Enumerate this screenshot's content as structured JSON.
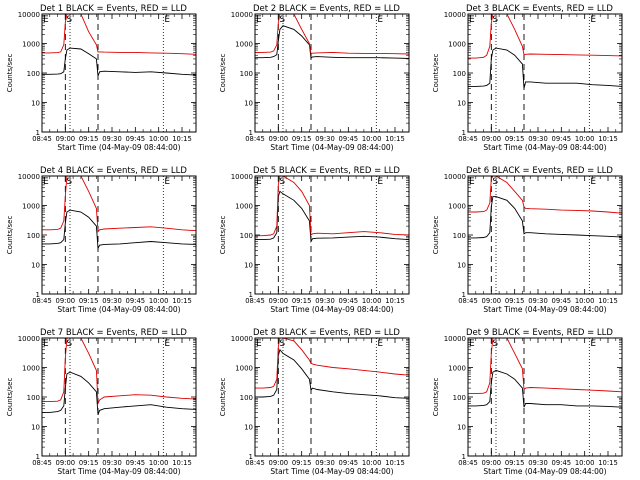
{
  "colors": {
    "events": "#000000",
    "lld": "#dd0000",
    "axis": "#000000",
    "background": "#ffffff"
  },
  "panel_common": {
    "ylabel": "Counts/sec",
    "xlabel_prefix": "Start Time (",
    "xlabel_suffix": ")",
    "yticks": [
      "1",
      "10",
      "100",
      "1000",
      "10000"
    ],
    "xticks": [
      "08:45",
      "09:00",
      "09:15",
      "09:30",
      "09:45",
      "10:00",
      "10:15"
    ],
    "marker_s": "S",
    "marker_e": "E",
    "title_suffix": " BLACK = Events, RED = LLD"
  },
  "chart_data": [
    {
      "type": "line",
      "title": "Det 1",
      "start_time": "04-May-09 08:44:00",
      "xlabel": "Start Time (04-May-09 08:44:00)",
      "ylabel": "Counts/sec",
      "x_unit": "minutes from 08:45",
      "xlim": [
        0,
        99
      ],
      "ylim": [
        1,
        10000
      ],
      "yscale": "log",
      "markers": {
        "s_dashed": 15,
        "e_dashed": 36,
        "s_dotted": 18,
        "e_dotted": 78
      },
      "series": [
        {
          "name": "Events",
          "color": "#000000",
          "x": [
            0,
            5,
            10,
            12,
            14,
            15,
            16,
            18,
            25,
            30,
            35,
            36,
            37,
            40,
            50,
            60,
            70,
            80,
            90,
            99
          ],
          "y": [
            90,
            90,
            92,
            95,
            110,
            300,
            600,
            700,
            650,
            450,
            300,
            80,
            110,
            115,
            110,
            105,
            110,
            100,
            90,
            85
          ]
        },
        {
          "name": "LLD",
          "color": "#dd0000",
          "x": [
            0,
            5,
            10,
            12,
            14,
            15,
            16,
            18,
            25,
            30,
            35,
            36,
            37,
            40,
            50,
            60,
            70,
            80,
            90,
            99
          ],
          "y": [
            480,
            480,
            490,
            520,
            900,
            5000,
            10000,
            10000,
            10000,
            2500,
            900,
            520,
            520,
            510,
            500,
            500,
            480,
            470,
            450,
            430
          ]
        }
      ]
    },
    {
      "type": "line",
      "title": "Det 2",
      "start_time": "04-May-09 08:44:00",
      "xlabel": "Start Time (04-May-09 08:44:00)",
      "ylabel": "Counts/sec",
      "x_unit": "minutes from 08:45",
      "xlim": [
        0,
        99
      ],
      "ylim": [
        1,
        10000
      ],
      "yscale": "log",
      "markers": {
        "s_dashed": 15,
        "e_dashed": 36,
        "s_dotted": 18,
        "e_dotted": 78
      },
      "series": [
        {
          "name": "Events",
          "color": "#000000",
          "x": [
            0,
            5,
            10,
            12,
            14,
            15,
            16,
            18,
            25,
            30,
            35,
            36,
            37,
            40,
            50,
            60,
            70,
            80,
            90,
            99
          ],
          "y": [
            330,
            330,
            340,
            360,
            420,
            1200,
            3000,
            4000,
            3000,
            1800,
            900,
            320,
            350,
            360,
            340,
            330,
            330,
            330,
            320,
            310
          ]
        },
        {
          "name": "LLD",
          "color": "#dd0000",
          "x": [
            0,
            5,
            10,
            12,
            14,
            15,
            16,
            18,
            25,
            30,
            35,
            36,
            37,
            40,
            50,
            60,
            70,
            80,
            90,
            99
          ],
          "y": [
            500,
            500,
            510,
            560,
            900,
            5000,
            10000,
            10000,
            10000,
            3000,
            1000,
            450,
            470,
            480,
            500,
            470,
            460,
            460,
            450,
            440
          ]
        }
      ]
    },
    {
      "type": "line",
      "title": "Det 3",
      "start_time": "04-May-09 08:44:00",
      "xlabel": "Start Time (04-May-09 08:44:00)",
      "ylabel": "Counts/sec",
      "x_unit": "minutes from 08:45",
      "xlim": [
        0,
        99
      ],
      "ylim": [
        1,
        10000
      ],
      "yscale": "log",
      "markers": {
        "s_dashed": 15,
        "e_dashed": 36,
        "s_dotted": 18,
        "e_dotted": 78
      },
      "series": [
        {
          "name": "Events",
          "color": "#000000",
          "x": [
            0,
            5,
            10,
            12,
            14,
            15,
            16,
            18,
            25,
            30,
            35,
            36,
            37,
            40,
            50,
            60,
            70,
            80,
            90,
            99
          ],
          "y": [
            35,
            35,
            36,
            38,
            45,
            300,
            600,
            700,
            600,
            400,
            200,
            30,
            50,
            50,
            45,
            45,
            45,
            40,
            38,
            35
          ]
        },
        {
          "name": "LLD",
          "color": "#dd0000",
          "x": [
            0,
            5,
            10,
            12,
            14,
            15,
            16,
            18,
            25,
            30,
            35,
            36,
            37,
            40,
            50,
            60,
            70,
            80,
            90,
            99
          ],
          "y": [
            320,
            320,
            340,
            400,
            800,
            5000,
            10000,
            10000,
            10000,
            3000,
            800,
            420,
            430,
            440,
            430,
            420,
            410,
            400,
            390,
            380
          ]
        }
      ]
    },
    {
      "type": "line",
      "title": "Det 4",
      "start_time": "04-May-09 08:44:00",
      "xlabel": "Start Time (04-May-09 08:44:00)",
      "ylabel": "Counts/sec",
      "x_unit": "minutes from 08:45",
      "xlim": [
        0,
        99
      ],
      "ylim": [
        1,
        10000
      ],
      "yscale": "log",
      "markers": {
        "s_dashed": 15,
        "e_dashed": 36,
        "s_dotted": 18,
        "e_dotted": 78
      },
      "series": [
        {
          "name": "Events",
          "color": "#000000",
          "x": [
            0,
            5,
            10,
            12,
            14,
            15,
            16,
            18,
            25,
            30,
            35,
            36,
            37,
            40,
            50,
            60,
            70,
            80,
            90,
            99
          ],
          "y": [
            50,
            50,
            52,
            55,
            70,
            250,
            600,
            700,
            600,
            400,
            200,
            35,
            45,
            48,
            50,
            55,
            60,
            55,
            50,
            48
          ]
        },
        {
          "name": "LLD",
          "color": "#dd0000",
          "x": [
            0,
            5,
            10,
            12,
            14,
            15,
            16,
            18,
            25,
            30,
            35,
            36,
            37,
            40,
            50,
            60,
            70,
            80,
            90,
            99
          ],
          "y": [
            150,
            150,
            155,
            170,
            300,
            2000,
            10000,
            10000,
            10000,
            3000,
            800,
            130,
            150,
            160,
            170,
            180,
            190,
            170,
            150,
            140
          ]
        }
      ]
    },
    {
      "type": "line",
      "title": "Det 5",
      "start_time": "04-May-09 08:44:00",
      "xlabel": "Start Time (04-May-09 08:44:00)",
      "ylabel": "Counts/sec",
      "x_unit": "minutes from 08:45",
      "xlim": [
        0,
        99
      ],
      "ylim": [
        1,
        10000
      ],
      "yscale": "log",
      "markers": {
        "s_dashed": 15,
        "e_dashed": 36,
        "s_dotted": 18,
        "e_dotted": 78
      },
      "series": [
        {
          "name": "Events",
          "color": "#000000",
          "x": [
            0,
            5,
            10,
            12,
            14,
            15,
            16,
            18,
            25,
            30,
            35,
            36,
            37,
            40,
            50,
            60,
            70,
            80,
            90,
            99
          ],
          "y": [
            70,
            70,
            72,
            80,
            120,
            2000,
            3000,
            2500,
            1500,
            800,
            300,
            60,
            75,
            78,
            80,
            85,
            90,
            85,
            75,
            70
          ]
        },
        {
          "name": "LLD",
          "color": "#dd0000",
          "x": [
            0,
            5,
            10,
            12,
            14,
            15,
            16,
            18,
            25,
            30,
            35,
            36,
            37,
            40,
            50,
            60,
            70,
            80,
            90,
            99
          ],
          "y": [
            95,
            95,
            100,
            110,
            200,
            5000,
            10000,
            10000,
            6000,
            3000,
            1000,
            100,
            110,
            115,
            110,
            120,
            130,
            120,
            105,
            100
          ]
        }
      ]
    },
    {
      "type": "line",
      "title": "Det 6",
      "start_time": "04-May-09 08:44:00",
      "xlabel": "Start Time (04-May-09 08:44:00)",
      "ylabel": "Counts/sec",
      "x_unit": "minutes from 08:45",
      "xlim": [
        0,
        99
      ],
      "ylim": [
        1,
        10000
      ],
      "yscale": "log",
      "markers": {
        "s_dashed": 15,
        "e_dashed": 36,
        "s_dotted": 18,
        "e_dotted": 78
      },
      "series": [
        {
          "name": "Events",
          "color": "#000000",
          "x": [
            0,
            5,
            10,
            12,
            14,
            15,
            16,
            18,
            25,
            30,
            35,
            36,
            37,
            40,
            50,
            60,
            70,
            80,
            90,
            99
          ],
          "y": [
            80,
            80,
            82,
            88,
            120,
            900,
            2000,
            2000,
            1500,
            800,
            300,
            110,
            120,
            120,
            110,
            105,
            100,
            95,
            90,
            85
          ]
        },
        {
          "name": "LLD",
          "color": "#dd0000",
          "x": [
            0,
            5,
            10,
            12,
            14,
            15,
            16,
            18,
            25,
            30,
            35,
            36,
            37,
            40,
            50,
            60,
            70,
            80,
            90,
            99
          ],
          "y": [
            600,
            600,
            620,
            700,
            1200,
            8000,
            10000,
            10000,
            6000,
            3000,
            1500,
            900,
            800,
            780,
            750,
            700,
            680,
            650,
            600,
            550
          ]
        }
      ]
    },
    {
      "type": "line",
      "title": "Det 7",
      "start_time": "04-May-09 08:44:00",
      "xlabel": "Start Time (04-May-09 08:44:00)",
      "ylabel": "Counts/sec",
      "x_unit": "minutes from 08:45",
      "xlim": [
        0,
        99
      ],
      "ylim": [
        1,
        10000
      ],
      "yscale": "log",
      "markers": {
        "s_dashed": 15,
        "e_dashed": 36,
        "s_dotted": 18,
        "e_dotted": 78
      },
      "series": [
        {
          "name": "Events",
          "color": "#000000",
          "x": [
            0,
            5,
            10,
            12,
            14,
            15,
            16,
            18,
            25,
            30,
            35,
            36,
            37,
            40,
            50,
            60,
            70,
            80,
            90,
            99
          ],
          "y": [
            30,
            30,
            32,
            35,
            50,
            200,
            600,
            700,
            500,
            300,
            150,
            25,
            35,
            40,
            45,
            50,
            55,
            45,
            40,
            38
          ]
        },
        {
          "name": "LLD",
          "color": "#dd0000",
          "x": [
            0,
            5,
            10,
            12,
            14,
            15,
            16,
            18,
            25,
            30,
            35,
            36,
            37,
            40,
            50,
            60,
            70,
            80,
            90,
            99
          ],
          "y": [
            70,
            70,
            72,
            80,
            150,
            2000,
            10000,
            10000,
            10000,
            3000,
            800,
            60,
            80,
            100,
            110,
            120,
            115,
            100,
            90,
            85
          ]
        }
      ]
    },
    {
      "type": "line",
      "title": "Det 8",
      "start_time": "04-May-09 08:44:00",
      "xlabel": "Start Time (04-May-09 08:44:00)",
      "ylabel": "Counts/sec",
      "x_unit": "minutes from 08:45",
      "xlim": [
        0,
        99
      ],
      "ylim": [
        1,
        10000
      ],
      "yscale": "log",
      "markers": {
        "s_dashed": 15,
        "e_dashed": 36,
        "s_dotted": 18,
        "e_dotted": 78
      },
      "series": [
        {
          "name": "Events",
          "color": "#000000",
          "x": [
            0,
            5,
            10,
            12,
            14,
            15,
            16,
            18,
            25,
            30,
            35,
            36,
            37,
            40,
            50,
            60,
            70,
            80,
            90,
            99
          ],
          "y": [
            100,
            100,
            105,
            115,
            180,
            2500,
            4000,
            3000,
            1800,
            900,
            400,
            170,
            200,
            180,
            150,
            130,
            120,
            110,
            95,
            90
          ]
        },
        {
          "name": "LLD",
          "color": "#dd0000",
          "x": [
            0,
            5,
            10,
            12,
            14,
            15,
            16,
            18,
            25,
            30,
            35,
            36,
            37,
            40,
            50,
            60,
            70,
            80,
            90,
            99
          ],
          "y": [
            200,
            200,
            210,
            230,
            400,
            5000,
            10000,
            10000,
            8000,
            4000,
            1800,
            1400,
            1300,
            1200,
            1000,
            900,
            800,
            700,
            600,
            550
          ]
        }
      ]
    },
    {
      "type": "line",
      "title": "Det 9",
      "start_time": "04-May-09 08:44:00",
      "xlabel": "Start Time (04-May-09 08:44:00)",
      "ylabel": "Counts/sec",
      "x_unit": "minutes from 08:45",
      "xlim": [
        0,
        99
      ],
      "ylim": [
        1,
        10000
      ],
      "yscale": "log",
      "markers": {
        "s_dashed": 15,
        "e_dashed": 36,
        "s_dotted": 18,
        "e_dotted": 78
      },
      "series": [
        {
          "name": "Events",
          "color": "#000000",
          "x": [
            0,
            5,
            10,
            12,
            14,
            15,
            16,
            18,
            25,
            30,
            35,
            36,
            37,
            40,
            50,
            60,
            70,
            80,
            90,
            99
          ],
          "y": [
            50,
            50,
            52,
            55,
            70,
            300,
            700,
            800,
            600,
            400,
            200,
            45,
            60,
            60,
            55,
            55,
            50,
            50,
            48,
            45
          ]
        },
        {
          "name": "LLD",
          "color": "#dd0000",
          "x": [
            0,
            5,
            10,
            12,
            14,
            15,
            16,
            18,
            25,
            30,
            35,
            36,
            37,
            40,
            50,
            60,
            70,
            80,
            90,
            99
          ],
          "y": [
            130,
            130,
            135,
            150,
            300,
            3000,
            10000,
            10000,
            10000,
            3000,
            900,
            180,
            200,
            210,
            200,
            190,
            180,
            170,
            160,
            150
          ]
        }
      ]
    }
  ]
}
